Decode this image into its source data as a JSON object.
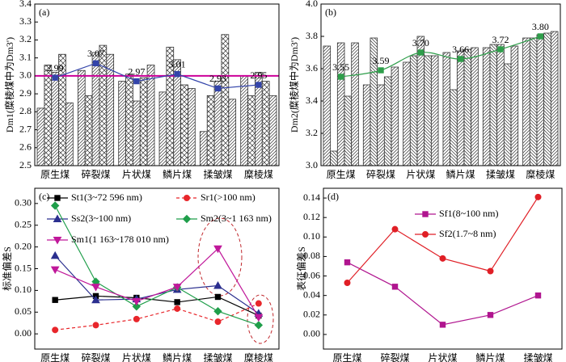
{
  "chart_data": [
    {
      "type": "bar",
      "panel_label": "(a)",
      "y_label": "Dm1(糜棱煤中为Dm3')",
      "categories": [
        "原生煤",
        "碎裂煤",
        "片状煤",
        "鳞片煤",
        "揉皱煤",
        "糜棱煤"
      ],
      "values": [
        [
          2.82,
          3.06,
          3.02,
          3.12,
          2.85
        ],
        [
          3.03,
          2.89,
          3.13,
          3.17,
          3.12
        ],
        [
          2.97,
          3.01,
          2.86,
          2.99,
          3.06
        ],
        [
          2.91,
          3.16,
          3.09,
          2.95,
          2.93
        ],
        [
          2.69,
          2.89,
          2.97,
          3.23,
          2.87
        ],
        [
          3.0,
          2.89,
          3.02,
          2.97,
          2.89
        ]
      ],
      "line": {
        "values": [
          2.99,
          3.07,
          2.97,
          3.01,
          2.93,
          2.95
        ],
        "color": "#3344aa",
        "smooth": false
      },
      "hline": {
        "value": 3.0,
        "color": "#cc0099"
      },
      "ylim": [
        2.5,
        3.4
      ],
      "yticks": [
        {
          "value": 2.5,
          "label": "2.5"
        },
        2.6,
        2.7,
        2.8,
        2.9,
        {
          "value": 3.0,
          "label": "3.0"
        },
        3.1,
        3.2,
        3.3,
        3.4
      ]
    },
    {
      "type": "bar",
      "panel_label": "(b)",
      "y_label": "Dm2(糜棱煤中为Dm3')",
      "categories": [
        "原生煤",
        "碎裂煤",
        "片状煤",
        "鳞片煤",
        "揉皱煤",
        "糜棱煤"
      ],
      "values": [
        [
          3.74,
          3.09,
          3.76,
          3.43,
          3.76
        ],
        [
          3.5,
          3.79,
          3.5,
          3.55,
          3.61
        ],
        [
          3.64,
          3.68,
          3.8,
          3.68,
          3.68
        ],
        [
          3.7,
          3.47,
          3.71,
          3.72,
          3.73
        ],
        [
          3.73,
          3.75,
          3.75,
          3.63,
          3.74
        ],
        [
          3.79,
          3.79,
          3.81,
          3.82,
          3.83
        ]
      ],
      "line": {
        "values": [
          3.55,
          3.59,
          3.7,
          3.66,
          3.72,
          3.8
        ],
        "value_labels": [
          "3.55",
          "3.59",
          "3.70",
          "3.66",
          "3.72",
          "3.80"
        ],
        "color": "#2e9e4a",
        "smooth": true
      },
      "ylim": [
        3.0,
        4.0
      ],
      "yticks": [
        {
          "value": 3.0,
          "label": "3.0"
        },
        3.2,
        3.4,
        3.6,
        3.8,
        {
          "value": 4.0,
          "label": "4.0"
        }
      ]
    },
    {
      "type": "line",
      "panel_label": "(c)",
      "y_label": "标准偏差S",
      "categories": [
        "原生煤",
        "碎裂煤",
        "片状煤",
        "鳞片煤",
        "揉皱煤",
        "糜棱煤"
      ],
      "series": [
        {
          "name": "St1(3~72 596 nm)",
          "color": "#000000",
          "marker": "square",
          "dash": false,
          "values": [
            0.078,
            0.087,
            0.083,
            0.073,
            0.085,
            0.042
          ]
        },
        {
          "name": "Sr1(>100 nm)",
          "color": "#e8262b",
          "marker": "circle",
          "dash": true,
          "values": [
            0.009,
            0.02,
            0.034,
            0.058,
            0.028,
            0.07
          ]
        },
        {
          "name": "Ss2(3~100 nm)",
          "color": "#2b2f8f",
          "marker": "triangle",
          "dash": false,
          "values": [
            0.18,
            0.078,
            0.08,
            0.102,
            0.111,
            0.047
          ]
        },
        {
          "name": "Sm2(3~1 163 nm)",
          "color": "#1f9e4a",
          "marker": "diamond",
          "dash": false,
          "values": [
            0.295,
            0.12,
            0.063,
            0.107,
            0.052,
            0.02
          ]
        },
        {
          "name": "Sm1(1 163~178 010 nm)",
          "color": "#c0189a",
          "marker": "triangle-down",
          "dash": false,
          "values": [
            0.148,
            0.108,
            0.075,
            0.108,
            0.196,
            0.038
          ]
        }
      ],
      "ylim": [
        -0.035,
        0.335
      ],
      "yticks": [
        {
          "value": 0,
          "label": "0.00"
        },
        0.05,
        {
          "value": 0.1,
          "label": "0.10"
        },
        0.15,
        {
          "value": 0.2,
          "label": "0.20"
        },
        0.25,
        {
          "value": 0.3,
          "label": "0.30"
        }
      ]
    },
    {
      "type": "line",
      "panel_label": "(d)",
      "y_label": "表征偏差S",
      "categories": [
        "原生煤",
        "碎裂煤",
        "片状煤",
        "鳞片煤",
        "揉皱煤"
      ],
      "series": [
        {
          "name": "Sf1(8~100 nm)",
          "color": "#b0158f",
          "marker": "square",
          "dash": false,
          "values": [
            0.074,
            0.049,
            0.01,
            0.02,
            0.04
          ]
        },
        {
          "name": "Sf2(1.7~8 nm)",
          "color": "#e01f26",
          "marker": "circle",
          "dash": false,
          "values": [
            0.053,
            0.108,
            0.078,
            0.065,
            0.141
          ]
        }
      ],
      "ylim": [
        -0.015,
        0.15
      ],
      "yticks": [
        {
          "value": 0,
          "label": "0.00"
        },
        0.02,
        0.04,
        0.06,
        0.08,
        {
          "value": 0.1,
          "label": "0.10"
        },
        0.12,
        0.14
      ]
    }
  ]
}
